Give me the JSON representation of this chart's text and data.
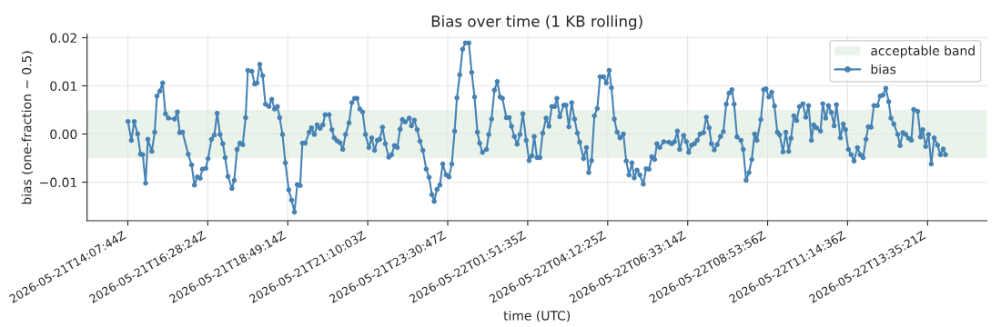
{
  "chart_data": {
    "type": "line",
    "title": "Bias over time (1 KB rolling)",
    "xlabel": "time (UTC)",
    "ylabel": "bias (one-fraction − 0.5)",
    "xlim": [
      "2026-05-21T12:56",
      "2026-05-22T15:20"
    ],
    "xticks": [
      {
        "value": "2026-05-21T14:07:44",
        "label": "2026-05-21T14:07:44Z"
      },
      {
        "value": "2026-05-21T16:28:24",
        "label": "2026-05-21T16:28:24Z"
      },
      {
        "value": "2026-05-21T18:49:14",
        "label": "2026-05-21T18:49:14Z"
      },
      {
        "value": "2026-05-21T21:10:03",
        "label": "2026-05-21T21:10:03Z"
      },
      {
        "value": "2026-05-21T23:30:47",
        "label": "2026-05-21T23:30:47Z"
      },
      {
        "value": "2026-05-22T01:51:35",
        "label": "2026-05-22T01:51:35Z"
      },
      {
        "value": "2026-05-22T04:12:25",
        "label": "2026-05-22T04:12:25Z"
      },
      {
        "value": "2026-05-22T06:33:14",
        "label": "2026-05-22T06:33:14Z"
      },
      {
        "value": "2026-05-22T08:53:56",
        "label": "2026-05-22T08:53:56Z"
      },
      {
        "value": "2026-05-22T11:14:36",
        "label": "2026-05-22T11:14:36Z"
      },
      {
        "value": "2026-05-22T13:35:21",
        "label": "2026-05-22T13:35:21Z"
      }
    ],
    "ylim": [
      -0.018,
      0.0207
    ],
    "yticks": [
      {
        "value": -0.01,
        "label": "−0.01"
      },
      {
        "value": 0,
        "label": "0.00"
      },
      {
        "value": 0.01,
        "label": "0.01"
      },
      {
        "value": 0.02,
        "label": "0.02"
      }
    ],
    "bands": [
      {
        "axis": "y",
        "from": -0.005,
        "to": 0.005,
        "label": "acceptable band",
        "color": "#e9f3e9"
      }
    ],
    "grid": true,
    "legend": "top right",
    "marker": "circle",
    "line_style": "solid",
    "series": [
      {
        "name": "bias",
        "color": "#4682b4",
        "x": [
          "2026-05-21T14:08",
          "2026-05-21T14:14",
          "2026-05-21T14:19",
          "2026-05-21T14:25",
          "2026-05-21T14:30",
          "2026-05-21T14:34",
          "2026-05-21T14:39",
          "2026-05-21T14:43",
          "2026-05-21T14:50",
          "2026-05-21T14:55",
          "2026-05-21T14:59",
          "2026-05-21T15:04",
          "2026-05-21T15:09",
          "2026-05-21T15:14",
          "2026-05-21T15:19",
          "2026-05-21T15:30",
          "2026-05-21T15:35",
          "2026-05-21T15:39",
          "2026-05-21T15:44",
          "2026-05-21T15:54",
          "2026-05-21T16:00",
          "2026-05-21T16:05",
          "2026-05-21T16:10",
          "2026-05-21T16:15",
          "2026-05-21T16:19",
          "2026-05-21T16:25",
          "2026-05-21T16:29",
          "2026-05-21T16:35",
          "2026-05-21T16:40",
          "2026-05-21T16:45",
          "2026-05-21T16:50",
          "2026-05-21T16:55",
          "2026-05-21T16:59",
          "2026-05-21T17:04",
          "2026-05-21T17:11",
          "2026-05-21T17:15",
          "2026-05-21T17:20",
          "2026-05-21T17:25",
          "2026-05-21T17:30",
          "2026-05-21T17:35",
          "2026-05-21T17:39",
          "2026-05-21T17:46",
          "2026-05-21T17:51",
          "2026-05-21T17:55",
          "2026-05-21T18:00",
          "2026-05-21T18:05",
          "2026-05-21T18:10",
          "2026-05-21T18:16",
          "2026-05-21T18:21",
          "2026-05-21T18:26",
          "2026-05-21T18:31",
          "2026-05-21T18:35",
          "2026-05-21T18:40",
          "2026-05-21T18:45",
          "2026-05-21T18:51",
          "2026-05-21T18:56",
          "2026-05-21T19:01",
          "2026-05-21T19:06",
          "2026-05-21T19:11",
          "2026-05-21T19:15",
          "2026-05-21T19:20",
          "2026-05-21T19:27",
          "2026-05-21T19:31",
          "2026-05-21T19:36",
          "2026-05-21T19:41",
          "2026-05-21T19:46",
          "2026-05-21T19:51",
          "2026-05-21T19:55",
          "2026-05-21T20:02",
          "2026-05-21T20:07",
          "2026-05-21T20:11",
          "2026-05-21T20:16",
          "2026-05-21T20:21",
          "2026-05-21T20:26",
          "2026-05-21T20:31",
          "2026-05-21T20:37",
          "2026-05-21T20:42",
          "2026-05-21T20:47",
          "2026-05-21T20:51",
          "2026-05-21T20:56",
          "2026-05-21T21:01",
          "2026-05-21T21:06",
          "2026-05-21T21:12",
          "2026-05-21T21:17",
          "2026-05-21T21:22",
          "2026-05-21T21:27",
          "2026-05-21T21:31",
          "2026-05-21T21:36",
          "2026-05-21T21:41",
          "2026-05-21T21:47",
          "2026-05-21T21:52",
          "2026-05-21T21:57",
          "2026-05-21T22:02",
          "2026-05-21T22:07",
          "2026-05-21T22:11",
          "2026-05-21T22:16",
          "2026-05-21T22:23",
          "2026-05-21T22:27",
          "2026-05-21T22:32",
          "2026-05-21T22:37",
          "2026-05-21T22:42",
          "2026-05-21T22:47",
          "2026-05-21T22:53",
          "2026-05-21T22:58",
          "2026-05-21T23:03",
          "2026-05-21T23:07",
          "2026-05-21T23:12",
          "2026-05-21T23:17",
          "2026-05-21T23:22",
          "2026-05-21T23:28",
          "2026-05-21T23:33",
          "2026-05-21T23:38",
          "2026-05-21T23:43",
          "2026-05-21T23:47",
          "2026-05-21T23:52",
          "2026-05-21T23:57",
          "2026-05-22T00:02",
          "2026-05-22T00:08",
          "2026-05-22T00:13",
          "2026-05-22T00:18",
          "2026-05-22T00:23",
          "2026-05-22T00:27",
          "2026-05-22T00:32",
          "2026-05-22T00:39",
          "2026-05-22T00:43",
          "2026-05-22T00:48",
          "2026-05-22T00:53",
          "2026-05-22T00:58",
          "2026-05-22T01:03",
          "2026-05-22T01:07",
          "2026-05-22T01:14",
          "2026-05-22T01:19",
          "2026-05-22T01:23",
          "2026-05-22T01:28",
          "2026-05-22T01:33",
          "2026-05-22T01:38",
          "2026-05-22T01:43",
          "2026-05-22T01:49",
          "2026-05-22T01:54",
          "2026-05-22T01:59",
          "2026-05-22T02:03",
          "2026-05-22T02:08",
          "2026-05-22T02:13",
          "2026-05-22T02:18",
          "2026-05-22T02:24",
          "2026-05-22T02:29",
          "2026-05-22T02:34",
          "2026-05-22T02:39",
          "2026-05-22T02:43",
          "2026-05-22T02:48",
          "2026-05-22T02:55",
          "2026-05-22T02:59",
          "2026-05-22T03:04",
          "2026-05-22T03:09",
          "2026-05-22T03:14",
          "2026-05-22T03:19",
          "2026-05-22T03:23",
          "2026-05-22T03:30",
          "2026-05-22T03:35",
          "2026-05-22T03:39",
          "2026-05-22T03:44",
          "2026-05-22T03:49",
          "2026-05-22T03:54",
          "2026-05-22T03:59",
          "2026-05-22T04:05",
          "2026-05-22T04:10",
          "2026-05-22T04:15",
          "2026-05-22T04:19",
          "2026-05-22T04:24",
          "2026-05-22T04:29",
          "2026-05-22T04:34",
          "2026-05-22T04:40",
          "2026-05-22T04:45",
          "2026-05-22T04:50",
          "2026-05-22T04:55",
          "2026-05-22T04:59",
          "2026-05-22T05:04",
          "2026-05-22T05:09",
          "2026-05-22T05:15",
          "2026-05-22T05:20",
          "2026-05-22T05:25",
          "2026-05-22T05:30",
          "2026-05-22T05:35",
          "2026-05-22T05:39",
          "2026-05-22T05:44",
          "2026-05-22T05:51",
          "2026-05-22T06:00",
          "2026-05-22T06:05",
          "2026-05-22T06:10",
          "2026-05-22T06:15",
          "2026-05-22T06:19",
          "2026-05-22T06:26",
          "2026-05-22T06:31",
          "2026-05-22T06:35",
          "2026-05-22T06:40",
          "2026-05-22T06:45",
          "2026-05-22T06:50",
          "2026-05-22T06:55",
          "2026-05-22T07:01",
          "2026-05-22T07:06",
          "2026-05-22T07:11",
          "2026-05-22T07:15",
          "2026-05-22T07:20",
          "2026-05-22T07:25",
          "2026-05-22T07:31",
          "2026-05-22T07:36",
          "2026-05-22T07:41",
          "2026-05-22T07:46",
          "2026-05-22T07:51",
          "2026-05-22T07:55",
          "2026-05-22T08:00",
          "2026-05-22T08:07",
          "2026-05-22T08:11",
          "2026-05-22T08:16",
          "2026-05-22T08:21",
          "2026-05-22T08:26",
          "2026-05-22T08:31",
          "2026-05-22T08:35",
          "2026-05-22T08:42",
          "2026-05-22T08:47",
          "2026-05-22T08:51",
          "2026-05-22T08:56",
          "2026-05-22T09:01",
          "2026-05-22T09:06",
          "2026-05-22T09:11",
          "2026-05-22T09:15",
          "2026-05-22T09:21",
          "2026-05-22T09:26",
          "2026-05-22T09:31",
          "2026-05-22T09:35",
          "2026-05-22T09:40",
          "2026-05-22T09:45",
          "2026-05-22T09:50",
          "2026-05-22T09:56",
          "2026-05-22T10:01",
          "2026-05-22T10:06",
          "2026-05-22T10:11",
          "2026-05-22T10:15",
          "2026-05-22T10:20",
          "2026-05-22T10:27",
          "2026-05-22T10:31",
          "2026-05-22T10:36",
          "2026-05-22T10:41",
          "2026-05-22T10:46",
          "2026-05-22T10:51",
          "2026-05-22T10:55",
          "2026-05-22T11:02",
          "2026-05-22T11:07",
          "2026-05-22T11:11",
          "2026-05-22T11:16",
          "2026-05-22T11:21",
          "2026-05-22T11:26",
          "2026-05-22T11:32",
          "2026-05-22T11:37",
          "2026-05-22T11:42",
          "2026-05-22T11:47",
          "2026-05-22T11:51",
          "2026-05-22T11:56",
          "2026-05-22T12:01",
          "2026-05-22T12:07",
          "2026-05-22T12:12",
          "2026-05-22T12:17",
          "2026-05-22T12:22",
          "2026-05-22T12:27",
          "2026-05-22T12:31",
          "2026-05-22T12:36",
          "2026-05-22T12:43",
          "2026-05-22T12:47",
          "2026-05-22T12:52",
          "2026-05-22T12:57",
          "2026-05-22T13:02",
          "2026-05-22T13:07",
          "2026-05-22T13:11",
          "2026-05-22T13:18",
          "2026-05-22T13:23",
          "2026-05-22T13:27",
          "2026-05-22T13:32",
          "2026-05-22T13:37",
          "2026-05-22T13:42",
          "2026-05-22T13:47",
          "2026-05-22T13:53",
          "2026-05-22T13:58",
          "2026-05-22T14:03",
          "2026-05-22T14:07"
        ],
        "values": [
          0.0026,
          -0.0013,
          0.0026,
          0.0,
          -0.0042,
          -0.0043,
          -0.0102,
          -0.0011,
          -0.0036,
          0.0004,
          0.0079,
          0.0089,
          0.0106,
          0.0042,
          0.0033,
          0.0031,
          0.0046,
          0.0003,
          0.0004,
          -0.0042,
          -0.0064,
          -0.0106,
          -0.0089,
          -0.0092,
          -0.0073,
          -0.0071,
          -0.0051,
          -0.0011,
          -0.0002,
          0.0043,
          -0.0001,
          -0.002,
          -0.0049,
          -0.0088,
          -0.0113,
          -0.0096,
          -0.0032,
          -0.0019,
          -0.0022,
          0.0034,
          0.0132,
          0.013,
          0.0104,
          0.0106,
          0.0145,
          0.0121,
          0.0062,
          0.0057,
          0.0072,
          0.0052,
          0.0057,
          0.0034,
          -0.0001,
          -0.006,
          -0.0116,
          -0.0137,
          -0.0162,
          -0.0105,
          -0.0107,
          -0.0019,
          -0.0019,
          0.0004,
          0.0013,
          -0.0001,
          0.0019,
          0.0012,
          0.0019,
          0.004,
          0.004,
          0.0009,
          -0.0008,
          -0.0014,
          -0.0018,
          -0.0032,
          -0.0001,
          0.0023,
          0.0065,
          0.0074,
          0.0074,
          0.0052,
          0.0046,
          -0.0001,
          -0.0028,
          -0.0008,
          -0.0034,
          -0.0013,
          -0.0011,
          0.0014,
          -0.002,
          -0.0048,
          -0.0043,
          -0.0024,
          -0.0028,
          0.001,
          0.003,
          0.0025,
          0.0033,
          0.0017,
          0.0029,
          0.0009,
          -0.0015,
          -0.0034,
          -0.0073,
          -0.009,
          -0.0126,
          -0.014,
          -0.0115,
          -0.0106,
          -0.0062,
          -0.0085,
          -0.0089,
          -0.0062,
          0.0006,
          0.0075,
          0.0123,
          0.0176,
          0.0189,
          0.0189,
          0.0128,
          0.0077,
          0.0004,
          -0.0019,
          -0.0038,
          -0.0032,
          -0.0001,
          0.0031,
          0.0091,
          0.0109,
          0.0077,
          0.0074,
          0.0034,
          0.0034,
          0.0016,
          -0.0005,
          -0.0021,
          -0.0001,
          0.0042,
          -0.0013,
          -0.0055,
          -0.0045,
          -0.0005,
          -0.0049,
          -0.0049,
          0.0002,
          0.0033,
          0.0016,
          0.0057,
          0.0057,
          0.0074,
          0.0036,
          0.006,
          0.006,
          0.0015,
          0.0065,
          0.0031,
          0.0002,
          -0.0017,
          -0.0051,
          -0.0028,
          -0.008,
          -0.0055,
          0.0038,
          0.0053,
          0.0119,
          0.0119,
          0.0106,
          0.0132,
          0.0096,
          0.0031,
          0.0004,
          -0.0008,
          0.0,
          -0.0056,
          -0.0085,
          -0.006,
          -0.0091,
          -0.0075,
          -0.0085,
          -0.0104,
          -0.0072,
          -0.0073,
          -0.0047,
          -0.0053,
          -0.002,
          -0.0028,
          -0.0016,
          -0.0017,
          -0.002,
          -0.0016,
          0.0006,
          -0.0032,
          -0.0003,
          -0.0016,
          -0.0038,
          -0.0023,
          -0.002,
          -0.0013,
          0.0,
          0.0003,
          0.0035,
          0.0013,
          -0.002,
          -0.0033,
          -0.0022,
          -0.0005,
          0.0005,
          0.0062,
          0.0085,
          0.0092,
          0.0062,
          -0.0006,
          -0.0013,
          -0.0032,
          -0.0096,
          -0.008,
          -0.0053,
          0.0,
          -0.0013,
          0.003,
          0.0092,
          0.0094,
          0.0077,
          0.0087,
          0.0058,
          0.0004,
          -0.0002,
          -0.0037,
          0.0004,
          -0.0036,
          -0.0009,
          0.0038,
          0.0028,
          0.0057,
          0.0063,
          0.0035,
          0.0059,
          -0.0013,
          0.0019,
          0.0013,
          0.0006,
          0.0063,
          0.0033,
          0.0059,
          0.0045,
          0.0017,
          0.0061,
          -0.0008,
          0.0021,
          0.0009,
          -0.0032,
          -0.0043,
          -0.0056,
          -0.0028,
          -0.0043,
          -0.0049,
          -0.0011,
          0.0015,
          0.0014,
          0.0059,
          0.0059,
          0.0079,
          0.0081,
          0.0095,
          0.0067,
          0.0033,
          0.0021,
          -0.0001,
          -0.0024,
          0.0003,
          -0.0001,
          -0.0009,
          -0.0013,
          0.0051,
          0.0047,
          -0.0006,
          0.0009,
          -0.0026,
          -0.0001,
          -0.0062,
          -0.0008,
          -0.0023,
          -0.0043,
          -0.0031,
          -0.0043
        ]
      }
    ]
  }
}
